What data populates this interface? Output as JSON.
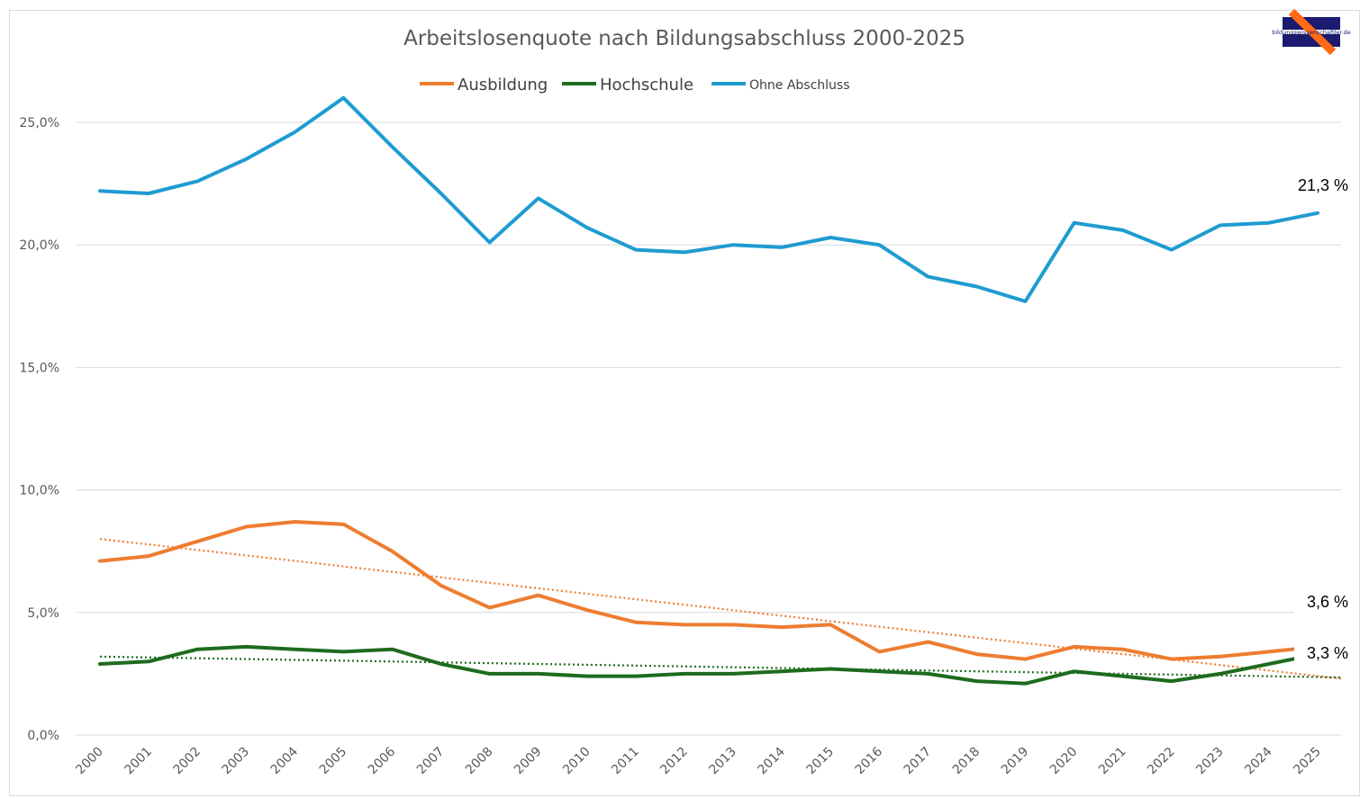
{
  "logo": {
    "text": "bildungswissenschaftler.de"
  },
  "chart_data": {
    "type": "line",
    "title": "Arbeitslosenquote nach Bildungsabschluss 2000-2025",
    "xlabel": "",
    "ylabel": "",
    "ylim": [
      0,
      27.5
    ],
    "yticks": [
      "0,0%",
      "5,0%",
      "10,0%",
      "15,0%",
      "20,0%",
      "25,0%"
    ],
    "grid": "horizontal",
    "legend_position": "top",
    "x": [
      "2000",
      "2001",
      "2002",
      "2003",
      "2004",
      "2005",
      "2006",
      "2007",
      "2008",
      "2009",
      "2010",
      "2011",
      "2012",
      "2013",
      "2014",
      "2015",
      "2016",
      "2017",
      "2018",
      "2019",
      "2020",
      "2021",
      "2022",
      "2023",
      "2024",
      "2025"
    ],
    "series": [
      {
        "name": "Ausbildung",
        "color": "#ED7D31",
        "values": [
          7.1,
          7.3,
          7.9,
          8.5,
          8.7,
          8.6,
          7.5,
          6.1,
          5.2,
          5.7,
          5.1,
          4.6,
          4.5,
          4.5,
          4.4,
          4.5,
          3.4,
          3.8,
          3.3,
          3.1,
          3.6,
          3.5,
          3.1,
          3.2,
          3.4,
          3.6
        ],
        "trendline": {
          "style": "dotted",
          "start": 8.0,
          "end": 2.3
        },
        "end_label": "3,6 %"
      },
      {
        "name": "Hochschule",
        "color": "#1E6B1E",
        "values": [
          2.9,
          3.0,
          3.5,
          3.6,
          3.5,
          3.4,
          3.5,
          2.9,
          2.5,
          2.5,
          2.4,
          2.4,
          2.5,
          2.5,
          2.6,
          2.7,
          2.6,
          2.5,
          2.2,
          2.1,
          2.6,
          2.4,
          2.2,
          2.5,
          2.9,
          3.3
        ],
        "trendline": {
          "style": "dotted",
          "start": 3.2,
          "end": 2.35
        },
        "end_label": "3,3 %"
      },
      {
        "name": "Ohne Abschluss",
        "color": "#1F9BD1",
        "values": [
          22.2,
          22.1,
          22.6,
          23.5,
          24.6,
          26.0,
          24.0,
          22.1,
          20.1,
          21.9,
          20.7,
          19.8,
          19.7,
          20.0,
          19.9,
          20.3,
          20.0,
          18.7,
          18.3,
          17.7,
          20.9,
          20.6,
          19.8,
          20.8,
          20.9,
          21.3
        ],
        "end_label": "21,3 %"
      }
    ]
  }
}
